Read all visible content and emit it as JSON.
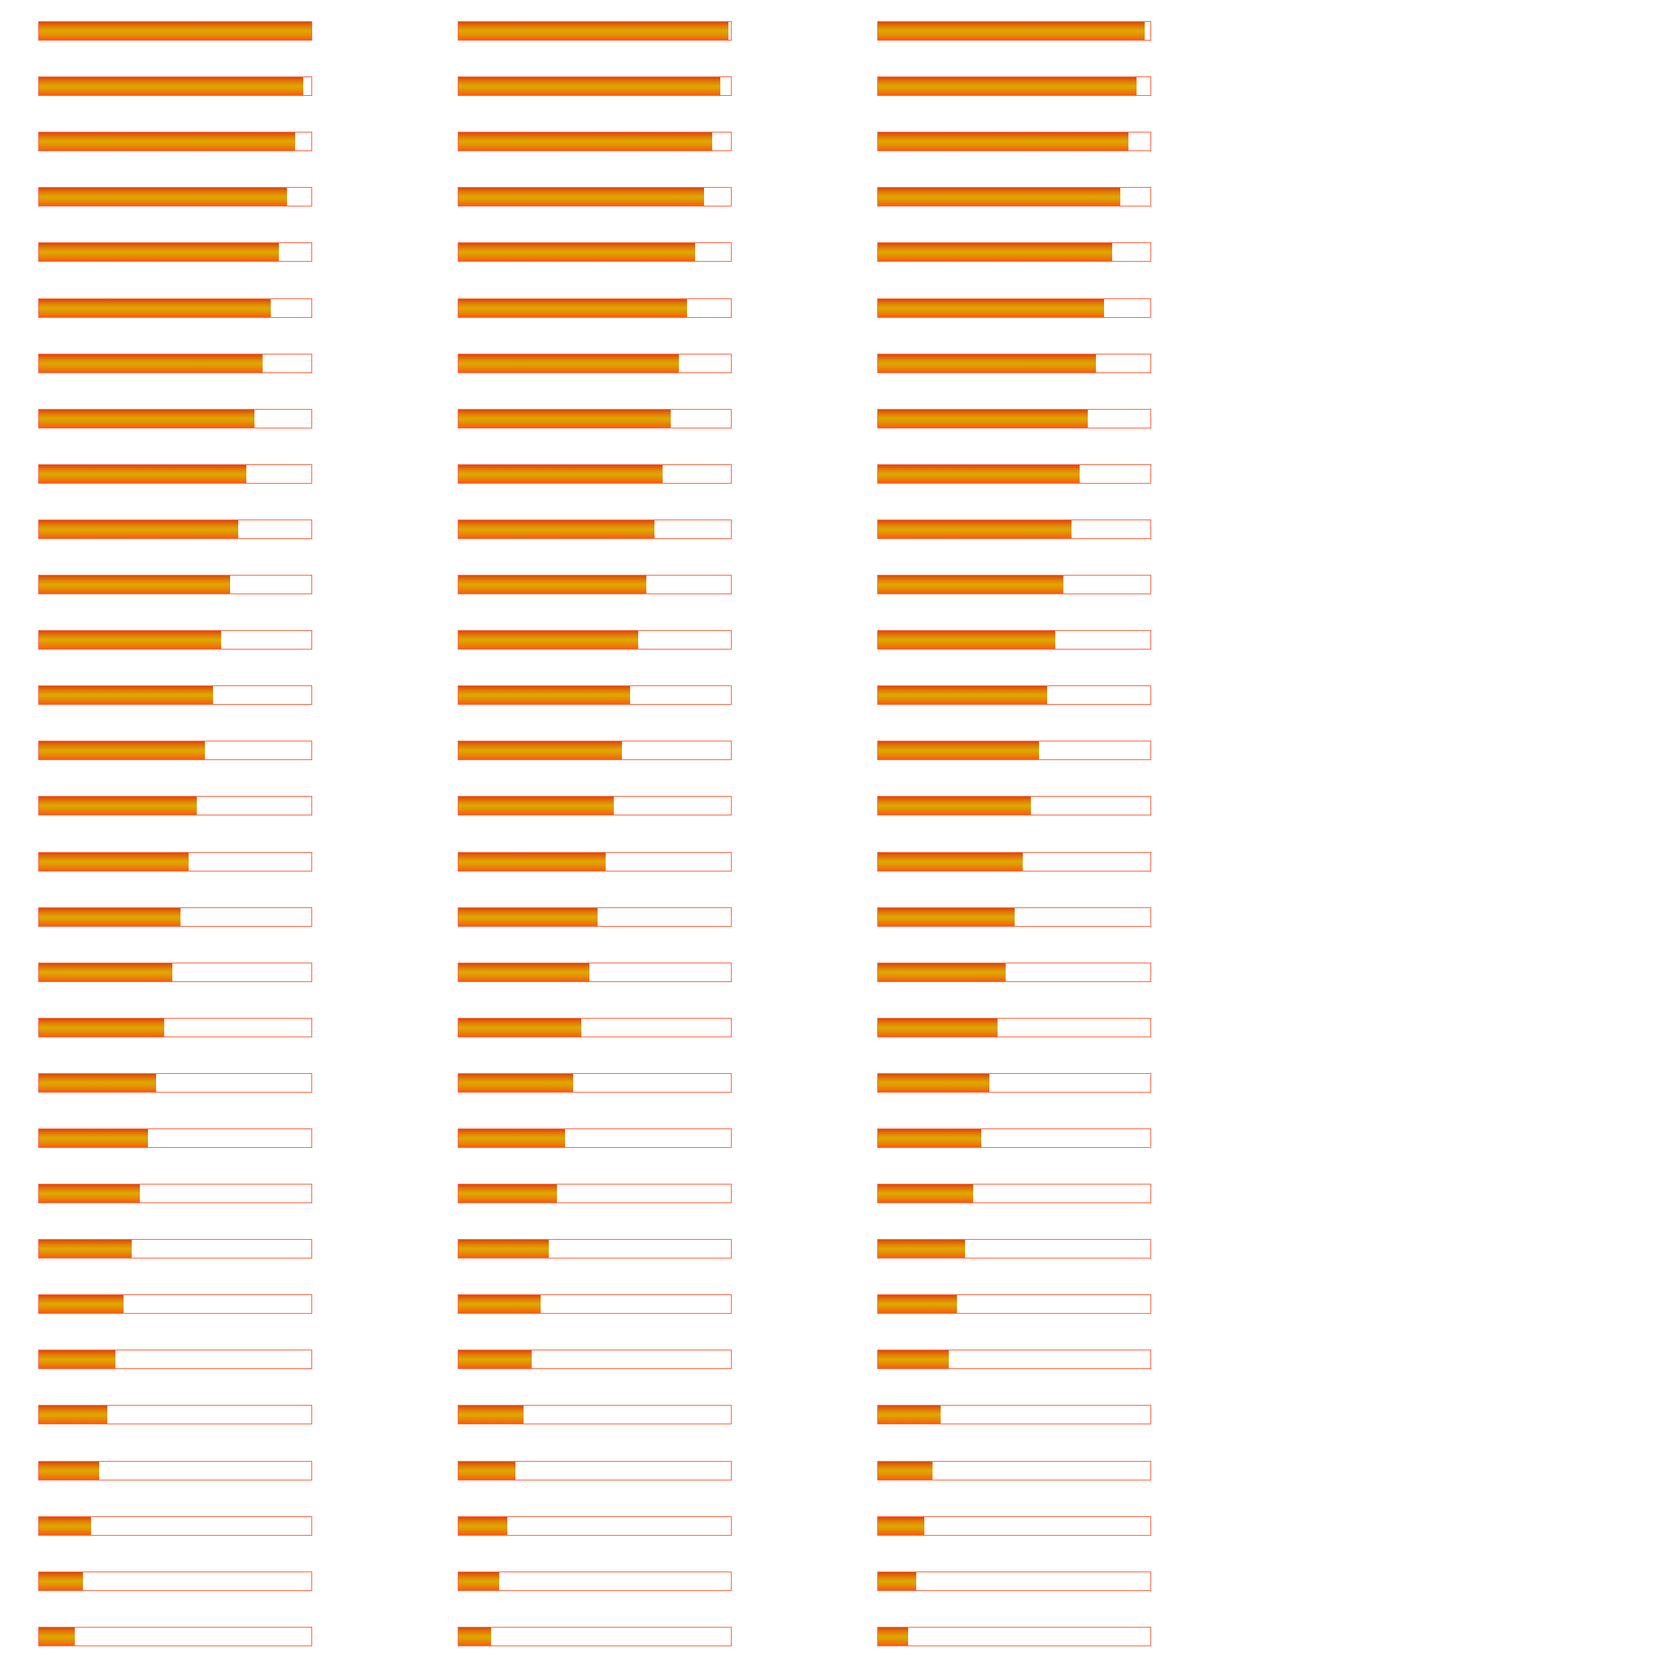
{
  "theme": {
    "track_border_color": "#ff6a4a",
    "track_background": "#ffffff",
    "fill_gradient": [
      "#d9480a",
      "#e37d05",
      "#dcaa00",
      "#e68a05",
      "#ff5a0a"
    ]
  },
  "progress_columns": [
    {
      "name": "column-1",
      "progress": [
        1.0,
        0.97,
        0.94,
        0.91,
        0.88,
        0.85,
        0.82,
        0.79,
        0.76,
        0.73,
        0.7,
        0.67,
        0.64,
        0.61,
        0.58,
        0.55,
        0.52,
        0.49,
        0.46,
        0.43,
        0.4,
        0.37,
        0.34,
        0.31,
        0.28,
        0.25,
        0.22,
        0.19,
        0.16,
        0.13
      ]
    },
    {
      "name": "column-2",
      "progress": [
        0.99,
        0.96,
        0.93,
        0.9,
        0.87,
        0.84,
        0.81,
        0.78,
        0.75,
        0.72,
        0.69,
        0.66,
        0.63,
        0.6,
        0.57,
        0.54,
        0.51,
        0.48,
        0.45,
        0.42,
        0.39,
        0.36,
        0.33,
        0.3,
        0.27,
        0.24,
        0.21,
        0.18,
        0.15,
        0.12
      ]
    },
    {
      "name": "column-3",
      "progress": [
        0.98,
        0.95,
        0.92,
        0.89,
        0.86,
        0.83,
        0.8,
        0.77,
        0.74,
        0.71,
        0.68,
        0.65,
        0.62,
        0.59,
        0.56,
        0.53,
        0.5,
        0.47,
        0.44,
        0.41,
        0.38,
        0.35,
        0.32,
        0.29,
        0.26,
        0.23,
        0.2,
        0.17,
        0.14,
        0.11
      ]
    }
  ]
}
